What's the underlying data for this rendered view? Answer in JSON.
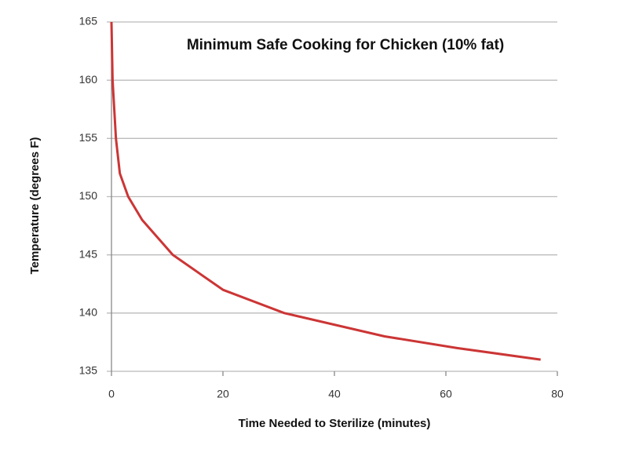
{
  "chart_data": {
    "type": "line",
    "title": "Minimum Safe Cooking for Chicken (10% fat)",
    "x_label": "Time Needed to Sterilize (minutes)",
    "y_label": "Temperature (degrees F)",
    "series": [
      {
        "name": "Chicken (10% fat)",
        "color": "#cc3535",
        "x": [
          0,
          0.2,
          0.8,
          1.5,
          3,
          5.5,
          11,
          20,
          31,
          49,
          62,
          77
        ],
        "values": [
          165,
          160,
          155,
          152,
          150,
          148,
          145,
          142,
          140,
          138,
          137,
          136
        ]
      }
    ],
    "xlim": [
      0,
      80
    ],
    "xticks": [
      0,
      20,
      40,
      60,
      80
    ],
    "ylim": [
      135,
      165
    ],
    "yticks": [
      135,
      140,
      145,
      150,
      155,
      160,
      165
    ],
    "grid": true
  }
}
